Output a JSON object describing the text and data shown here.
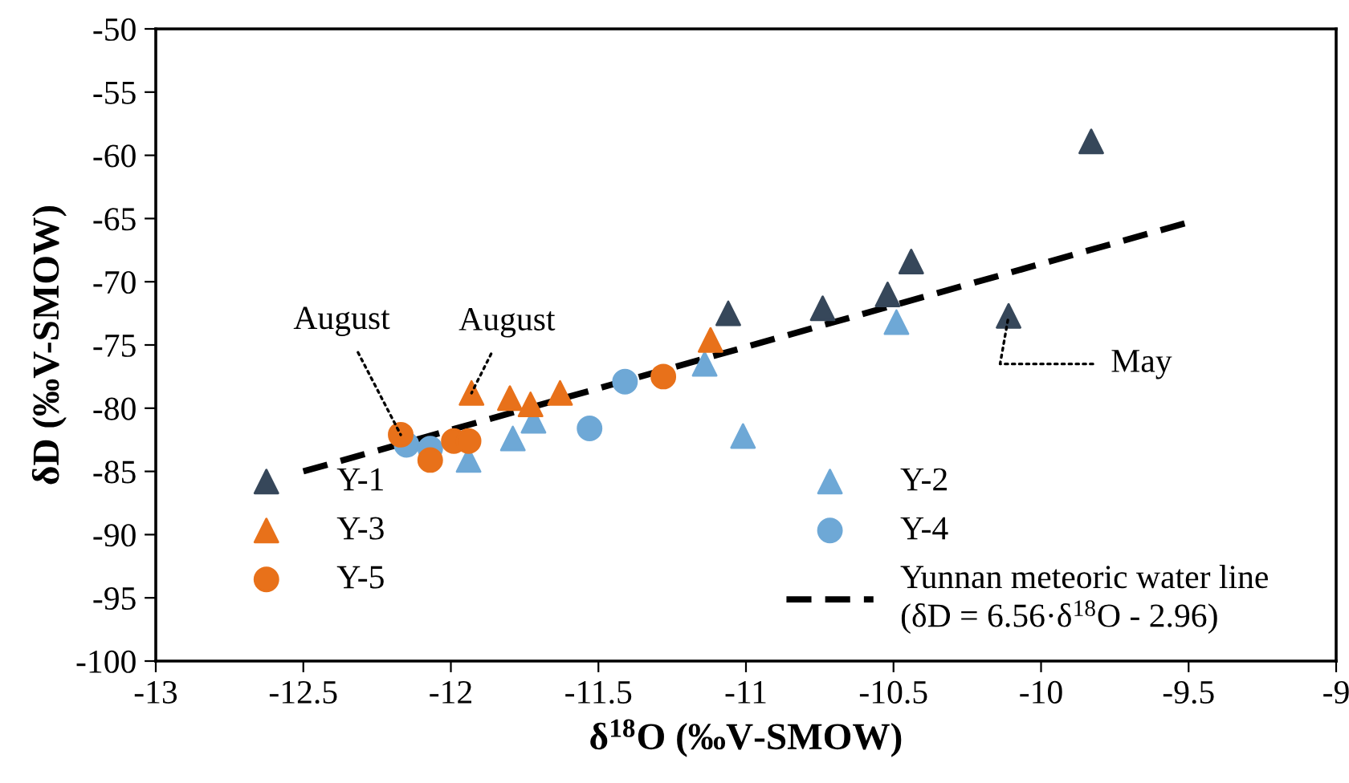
{
  "chart_data": {
    "type": "scatter",
    "xlabel": "δ$^{18}$O (‰V-SMOW)",
    "ylabel": "δD (‰V-SMOW)",
    "xlim": [
      -13,
      -9
    ],
    "xticks": [
      -13,
      -12.5,
      -12,
      -11.5,
      -11,
      -10.5,
      -10,
      -9.5,
      -9
    ],
    "ylim": [
      -100,
      -50
    ],
    "yticks": [
      -100,
      -95,
      -90,
      -85,
      -80,
      -75,
      -70,
      -65,
      -60,
      -55,
      -50
    ],
    "grid": false,
    "legend": "bottom",
    "series": [
      {
        "name": "Y-1",
        "color": "#36475a",
        "marker": "triangle",
        "x": [
          -11.06,
          -10.74,
          -10.52,
          -10.44,
          -10.11,
          -9.83
        ],
        "values": [
          -72.5,
          -72.1,
          -71.0,
          -68.4,
          -72.7,
          -58.9
        ]
      },
      {
        "name": "Y-2",
        "color": "#6ea8d6",
        "marker": "triangle",
        "x": [
          -10.49,
          -11.14,
          -11.01,
          -11.72,
          -11.79,
          -11.94
        ],
        "values": [
          -73.2,
          -76.5,
          -82.2,
          -81.0,
          -82.4,
          -84.1
        ]
      },
      {
        "name": "Y-3",
        "color": "#e8711a",
        "marker": "triangle",
        "x": [
          -11.93,
          -11.8,
          -11.73,
          -11.63,
          -11.12
        ],
        "values": [
          -78.8,
          -79.2,
          -79.7,
          -78.8,
          -74.6
        ]
      },
      {
        "name": "Y-4",
        "color": "#6ea8d6",
        "marker": "circle",
        "x": [
          -11.41,
          -11.53,
          -12.15,
          -12.07
        ],
        "values": [
          -77.9,
          -81.6,
          -82.9,
          -83.2
        ]
      },
      {
        "name": "Y-5",
        "color": "#e8711a",
        "marker": "circle",
        "x": [
          -12.17,
          -11.99,
          -11.94,
          -12.07,
          -11.28
        ],
        "values": [
          -82.1,
          -82.6,
          -82.6,
          -84.1,
          -77.5
        ]
      },
      {
        "name": "Yunnan meteoric water line\n(δD = 6.56·δ$^{18}$O - 2.96)",
        "type": "line",
        "line_style": "dashed",
        "marker": "none",
        "color": "#000000",
        "x": [
          -12.5,
          -9.5
        ],
        "values": [
          -85.0,
          -65.3
        ]
      }
    ],
    "annotations": [
      {
        "text": "August",
        "x": -12.17,
        "y": -82.1
      },
      {
        "text": "August",
        "x": -11.93,
        "y": -78.8
      },
      {
        "text": "May",
        "x": -10.11,
        "y": -72.7
      }
    ]
  }
}
